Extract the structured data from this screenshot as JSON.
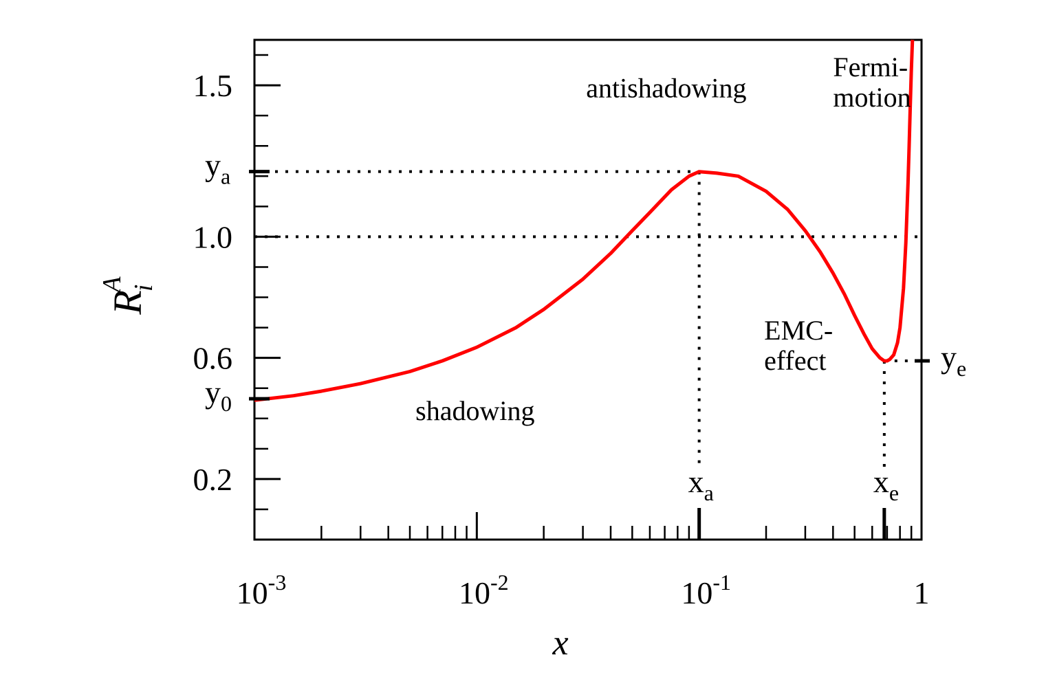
{
  "chart_data": {
    "type": "line",
    "title": "",
    "xlabel": "x",
    "ylabel": {
      "base": "R",
      "sub": "i",
      "sup": "A"
    },
    "xscale": "log",
    "xlim": [
      0.001,
      1
    ],
    "ylim": [
      0.0,
      1.65
    ],
    "x_ticks": [
      {
        "value": 0.001,
        "base": "10",
        "exp": "-3"
      },
      {
        "value": 0.01,
        "base": "10",
        "exp": "-2"
      },
      {
        "value": 0.1,
        "base": "10",
        "exp": "-1"
      },
      {
        "value": 1,
        "base": "1",
        "exp": ""
      }
    ],
    "y_ticks": [
      {
        "value": 0.2,
        "label": "0.2"
      },
      {
        "value": 0.6,
        "label": "0.6"
      },
      {
        "value": 1.0,
        "label": "1.0"
      },
      {
        "value": 1.5,
        "label": "1.5"
      }
    ],
    "reference_line": {
      "y": 1.0,
      "style": "dotted"
    },
    "series": [
      {
        "color": "#ff0000",
        "x": [
          0.001,
          0.0015,
          0.002,
          0.003,
          0.005,
          0.007,
          0.01,
          0.015,
          0.02,
          0.03,
          0.04,
          0.05,
          0.06,
          0.075,
          0.09,
          0.1,
          0.12,
          0.15,
          0.2,
          0.25,
          0.3,
          0.35,
          0.4,
          0.45,
          0.5,
          0.55,
          0.6,
          0.65,
          0.68,
          0.7,
          0.72,
          0.75,
          0.78,
          0.8,
          0.83,
          0.85,
          0.87,
          0.88,
          0.89,
          0.9,
          0.91
        ],
        "y": [
          0.46,
          0.475,
          0.49,
          0.515,
          0.555,
          0.59,
          0.635,
          0.7,
          0.76,
          0.86,
          0.945,
          1.02,
          1.08,
          1.155,
          1.2,
          1.215,
          1.21,
          1.2,
          1.15,
          1.09,
          1.02,
          0.95,
          0.88,
          0.81,
          0.74,
          0.68,
          0.63,
          0.6,
          0.59,
          0.59,
          0.595,
          0.61,
          0.65,
          0.7,
          0.83,
          0.98,
          1.18,
          1.3,
          1.43,
          1.55,
          1.65
        ]
      }
    ],
    "markers": [
      {
        "axis": "y",
        "value": 1.215,
        "base": "y",
        "sub": "a"
      },
      {
        "axis": "y",
        "value": 0.465,
        "base": "y",
        "sub": "0"
      },
      {
        "axis": "y",
        "value": 0.59,
        "base": "y",
        "sub": "e",
        "side": "right"
      },
      {
        "axis": "x",
        "value": 0.1,
        "base": "x",
        "sub": "a"
      },
      {
        "axis": "x",
        "value": 0.68,
        "base": "x",
        "sub": "e"
      }
    ],
    "annotations": [
      {
        "text": [
          "antishadowing"
        ],
        "x": 0.031,
        "y": 1.46
      },
      {
        "text": [
          "Fermi-",
          "motion"
        ],
        "x": 0.4,
        "y": 1.53
      },
      {
        "text": [
          "EMC-",
          "effect"
        ],
        "x": 0.196,
        "y": 0.66
      },
      {
        "text": [
          "shadowing"
        ],
        "x": 0.0053,
        "y": 0.395
      }
    ]
  }
}
